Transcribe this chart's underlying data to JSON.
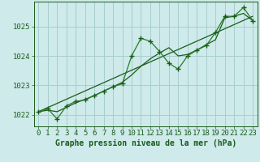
{
  "title": "Graphe pression niveau de la mer (hPa)",
  "bg_color": "#ceeaea",
  "grid_color": "#a8cece",
  "line_color_dark": "#1a5c1a",
  "line_color_med": "#2a7a2a",
  "xlim": [
    -0.5,
    23.5
  ],
  "ylim": [
    1021.6,
    1025.85
  ],
  "yticks": [
    1022,
    1023,
    1024,
    1025
  ],
  "xticks": [
    0,
    1,
    2,
    3,
    4,
    5,
    6,
    7,
    8,
    9,
    10,
    11,
    12,
    13,
    14,
    15,
    16,
    17,
    18,
    19,
    20,
    21,
    22,
    23
  ],
  "series_main_x": [
    0,
    1,
    2,
    3,
    4,
    5,
    6,
    7,
    8,
    9,
    10,
    11,
    12,
    13,
    14,
    15,
    16,
    17,
    18,
    19,
    20,
    21,
    22,
    23
  ],
  "series_main_y": [
    1022.1,
    1022.2,
    1021.85,
    1022.3,
    1022.45,
    1022.5,
    1022.65,
    1022.8,
    1022.95,
    1023.05,
    1024.0,
    1024.6,
    1024.5,
    1024.15,
    1023.75,
    1023.55,
    1024.0,
    1024.2,
    1024.35,
    1024.8,
    1025.35,
    1025.35,
    1025.65,
    1025.2
  ],
  "series_smooth_x": [
    0,
    1,
    2,
    3,
    4,
    5,
    6,
    7,
    8,
    9,
    10,
    11,
    12,
    13,
    14,
    15,
    16,
    17,
    18,
    19,
    20,
    21,
    22,
    23
  ],
  "series_smooth_y": [
    1022.1,
    1022.15,
    1022.1,
    1022.25,
    1022.4,
    1022.52,
    1022.65,
    1022.8,
    1022.95,
    1023.1,
    1023.35,
    1023.65,
    1023.9,
    1024.1,
    1024.28,
    1024.0,
    1024.05,
    1024.2,
    1024.38,
    1024.55,
    1025.3,
    1025.35,
    1025.45,
    1025.2
  ],
  "series_trend_x": [
    0,
    23
  ],
  "series_trend_y": [
    1022.1,
    1025.35
  ],
  "tick_fontsize": 6.5,
  "title_fontsize": 7.0,
  "tick_color": "#1a5c1a",
  "spine_color": "#1a5c1a"
}
